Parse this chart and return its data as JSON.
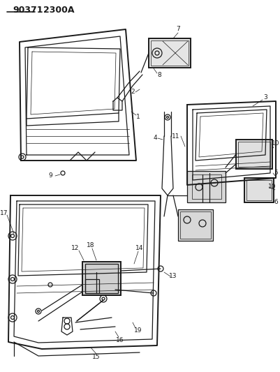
{
  "title": "90371  2300A",
  "bg": "#ffffff",
  "lc": "#1a1a1a",
  "fig_w": 4.02,
  "fig_h": 5.33,
  "dpi": 100
}
